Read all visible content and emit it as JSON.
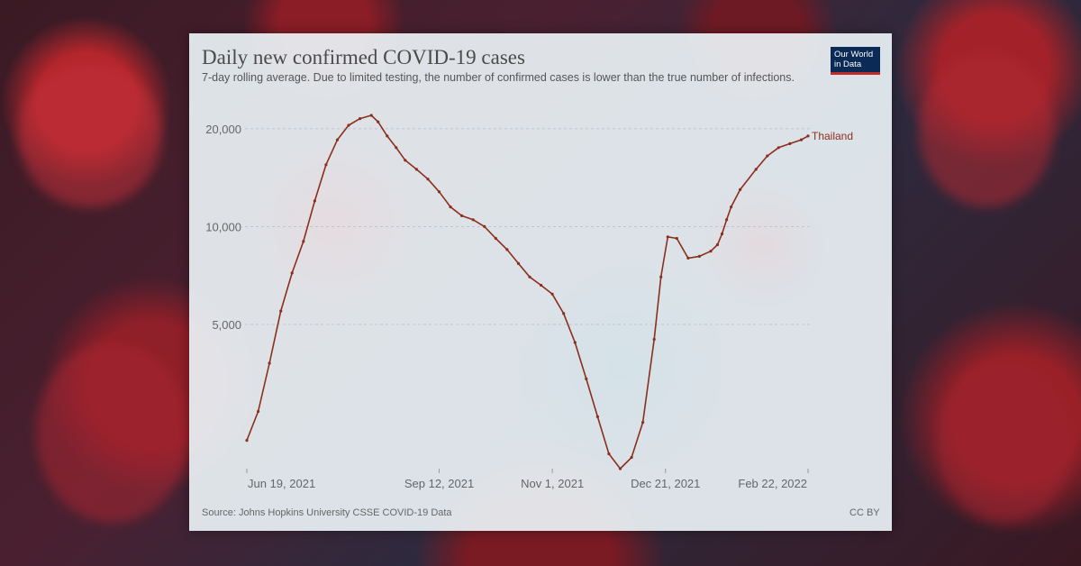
{
  "colors": {
    "series": "#8b2f1d",
    "grid": "#bfc7cc",
    "logo_bg": "#0b2a56",
    "logo_accent": "#c12a2a"
  },
  "source": "Source: Johns Hopkins University CSSE COVID-19 Data",
  "license": "CC BY",
  "logo": {
    "line1": "Our World",
    "line2": "in Data"
  },
  "chart_data": {
    "type": "line",
    "title": "Daily new confirmed COVID-19 cases",
    "subtitle": "7-day rolling average. Due to limited testing, the number of confirmed cases is lower than the true number of infections.",
    "xlabel": "",
    "ylabel": "",
    "yscale": "log",
    "ylim": [
      1800,
      23000
    ],
    "y_ticks": [
      {
        "value": 5000,
        "label": "5,000"
      },
      {
        "value": 10000,
        "label": "10,000"
      },
      {
        "value": 20000,
        "label": "20,000"
      }
    ],
    "x_ticks": [
      {
        "day": 0,
        "label": "Jun 19, 2021"
      },
      {
        "day": 85,
        "label": "Sep 12, 2021"
      },
      {
        "day": 135,
        "label": "Nov 1, 2021"
      },
      {
        "day": 185,
        "label": "Dec 21, 2021"
      },
      {
        "day": 248,
        "label": "Feb 22, 2022"
      }
    ],
    "xlim": [
      0,
      248
    ],
    "series": [
      {
        "name": "Thailand",
        "x": [
          0,
          5,
          10,
          15,
          20,
          25,
          30,
          35,
          40,
          45,
          50,
          55,
          58,
          62,
          66,
          70,
          75,
          80,
          85,
          90,
          95,
          100,
          105,
          110,
          115,
          120,
          125,
          130,
          135,
          140,
          145,
          150,
          155,
          160,
          165,
          170,
          175,
          180,
          183,
          186,
          190,
          195,
          200,
          205,
          208,
          210,
          212,
          214,
          218,
          225,
          230,
          235,
          240,
          245,
          248
        ],
        "values": [
          2200,
          2700,
          3800,
          5500,
          7200,
          9000,
          12000,
          15500,
          18500,
          20500,
          21500,
          22000,
          21000,
          19000,
          17500,
          16000,
          15000,
          14000,
          12800,
          11500,
          10800,
          10500,
          10000,
          9200,
          8500,
          7700,
          7000,
          6600,
          6200,
          5400,
          4400,
          3400,
          2600,
          2000,
          1800,
          1950,
          2500,
          4500,
          7000,
          9300,
          9200,
          8000,
          8100,
          8400,
          8800,
          9500,
          10500,
          11500,
          13000,
          15000,
          16500,
          17500,
          18000,
          18500,
          19000
        ]
      }
    ]
  }
}
